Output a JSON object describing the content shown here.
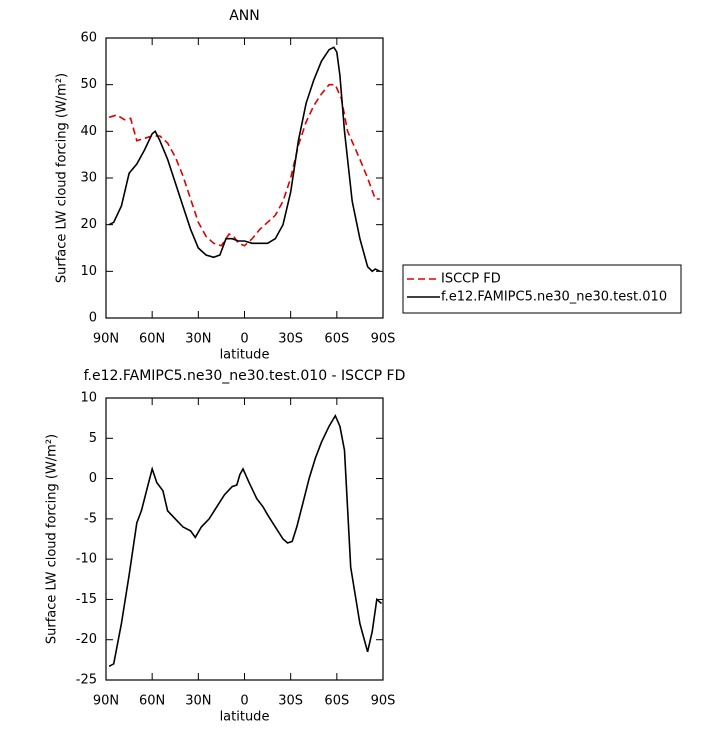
{
  "chart_data": [
    {
      "type": "line",
      "title": "ANN",
      "xlabel": "latitude",
      "ylabel": "Surface LW cloud forcing (W/m²)",
      "xlim": [
        90,
        -90
      ],
      "ylim": [
        0,
        60
      ],
      "xticks": [
        {
          "value": 90,
          "label": "90N"
        },
        {
          "value": 60,
          "label": "60N"
        },
        {
          "value": 30,
          "label": "30N"
        },
        0,
        {
          "value": -30,
          "label": "30S"
        },
        {
          "value": -60,
          "label": "60S"
        },
        {
          "value": -90,
          "label": "90S"
        }
      ],
      "yticks": [
        0,
        10,
        20,
        30,
        40,
        50,
        60
      ],
      "legend": "right",
      "series": [
        {
          "name": "ISCCP FD",
          "color": "#e00000",
          "linestyle": "dashed",
          "x": [
            88,
            83,
            78,
            74,
            70,
            65,
            60,
            55,
            50,
            45,
            40,
            35,
            30,
            25,
            20,
            15,
            10,
            7,
            4,
            0,
            -5,
            -10,
            -15,
            -20,
            -25,
            -30,
            -35,
            -40,
            -45,
            -50,
            -55,
            -59,
            -63,
            -67,
            -71,
            -75,
            -80,
            -85,
            -88
          ],
          "values": [
            43,
            43.5,
            42.5,
            42.8,
            38,
            38.5,
            39,
            39,
            37.5,
            34.5,
            30.5,
            25.5,
            20.5,
            17.5,
            16,
            15.5,
            18,
            17.5,
            16,
            15.5,
            17,
            19,
            20.5,
            22,
            25,
            30,
            37,
            42,
            45.5,
            48,
            50,
            50,
            47,
            40,
            37,
            34,
            30,
            25.5,
            25.5
          ]
        },
        {
          "name": "f.e12.FAMIPC5.ne30_ne30.test.010",
          "color": "#000000",
          "linestyle": "solid",
          "x": [
            88,
            85,
            80,
            75,
            70,
            65,
            60,
            58,
            55,
            50,
            45,
            40,
            35,
            30,
            25,
            20,
            16,
            12,
            8,
            4,
            0,
            -5,
            -10,
            -15,
            -20,
            -25,
            -30,
            -35,
            -40,
            -45,
            -50,
            -55,
            -58,
            -60,
            -62,
            -65,
            -70,
            -75,
            -80,
            -83,
            -85,
            -88
          ],
          "values": [
            20,
            20.5,
            24,
            31,
            33,
            36,
            39.5,
            40,
            38,
            34,
            29,
            24,
            19,
            15,
            13.5,
            13,
            13.5,
            17,
            17,
            16.5,
            16.5,
            16,
            16,
            16,
            17,
            20,
            27,
            38,
            46,
            51,
            55,
            57.5,
            58,
            57,
            52,
            40,
            25,
            17,
            11,
            10,
            10.5,
            10
          ]
        }
      ]
    },
    {
      "type": "line",
      "title": "f.e12.FAMIPC5.ne30_ne30.test.010 - ISCCP FD",
      "xlabel": "latitude",
      "ylabel": "Surface LW cloud forcing (W/m²)",
      "xlim": [
        90,
        -90
      ],
      "ylim": [
        -25,
        10
      ],
      "xticks": [
        {
          "value": 90,
          "label": "90N"
        },
        {
          "value": 60,
          "label": "60N"
        },
        {
          "value": 30,
          "label": "30N"
        },
        0,
        {
          "value": -30,
          "label": "30S"
        },
        {
          "value": -60,
          "label": "60S"
        },
        {
          "value": -90,
          "label": "90S"
        }
      ],
      "yticks": [
        -25,
        -20,
        -15,
        -10,
        -5,
        0,
        5,
        10
      ],
      "series": [
        {
          "color": "#000000",
          "linestyle": "solid",
          "x": [
            88,
            85,
            80,
            75,
            70,
            67,
            63,
            60,
            57,
            53,
            50,
            45,
            40,
            35,
            32,
            28,
            23,
            18,
            13,
            8,
            5,
            3,
            1,
            -3,
            -8,
            -12,
            -15,
            -20,
            -25,
            -28,
            -31,
            -34,
            -38,
            -42,
            -46,
            -50,
            -55,
            -59,
            -62,
            -65,
            -69,
            -75,
            -80,
            -83,
            -86,
            -89
          ],
          "values": [
            -23.3,
            -23,
            -18,
            -12,
            -5.5,
            -4,
            -1,
            1.2,
            -0.5,
            -1.5,
            -4,
            -5,
            -6,
            -6.5,
            -7.3,
            -6,
            -5,
            -3.5,
            -2,
            -1,
            -0.8,
            0.5,
            1.2,
            -0.5,
            -2.5,
            -3.5,
            -4.5,
            -6,
            -7.5,
            -8,
            -7.8,
            -6,
            -3,
            0,
            2.5,
            4.5,
            6.5,
            7.8,
            6.5,
            3.5,
            -11,
            -18,
            -21.5,
            -19,
            -15,
            -15.5
          ]
        }
      ]
    }
  ]
}
